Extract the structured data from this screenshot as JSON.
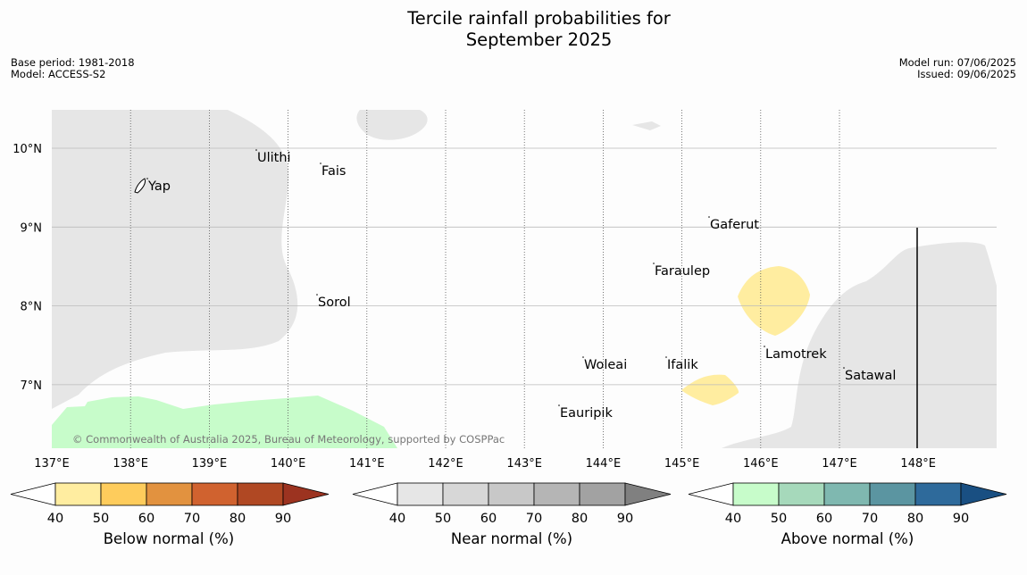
{
  "title": {
    "line1": "Tercile rainfall probabilities for",
    "line2": "September 2025"
  },
  "meta_left": {
    "base_period": "Base period: 1981-2018",
    "model": "Model: ACCESS-S2"
  },
  "meta_right": {
    "model_run": "Model run: 07/06/2025",
    "issued": "Issued: 09/06/2025"
  },
  "map": {
    "lon_labels": [
      "137°E",
      "138°E",
      "139°E",
      "140°E",
      "141°E",
      "142°E",
      "143°E",
      "144°E",
      "145°E",
      "146°E",
      "147°E",
      "148°E"
    ],
    "lat_labels": [
      "10°N",
      "9°N",
      "8°N",
      "7°N"
    ],
    "places": [
      "Yap",
      "Ulithi",
      "Fais",
      "Sorol",
      "Gaferut",
      "Faraulep",
      "Woleai",
      "Ifalik",
      "Lamotrek",
      "Satawal",
      "Eauripik"
    ],
    "copyright": "© Commonwealth of Australia 2025, Bureau of Meteorology, supported by COSPPac",
    "colors": {
      "near_normal": "#e6e6e6",
      "below_normal_40_50": "#ffeda0",
      "above_normal_40_50": "#c7fcca"
    }
  },
  "colorbars": [
    {
      "title": "Below normal (%)",
      "ticks": [
        "40",
        "50",
        "60",
        "70",
        "80",
        "90"
      ],
      "colors": [
        "#ffeda0",
        "#fecc5c",
        "#e2923f",
        "#d0622f",
        "#b04823",
        "#9c3320"
      ]
    },
    {
      "title": "Near normal (%)",
      "ticks": [
        "40",
        "50",
        "60",
        "70",
        "80",
        "90"
      ],
      "colors": [
        "#e6e6e6",
        "#d7d7d7",
        "#c8c8c8",
        "#b5b5b5",
        "#a2a2a2",
        "#808080"
      ]
    },
    {
      "title": "Above normal (%)",
      "ticks": [
        "40",
        "50",
        "60",
        "70",
        "80",
        "90"
      ],
      "colors": [
        "#c7fcca",
        "#a6d9bb",
        "#7fb8b0",
        "#5b95a1",
        "#2e6a9b",
        "#194f82"
      ]
    }
  ]
}
